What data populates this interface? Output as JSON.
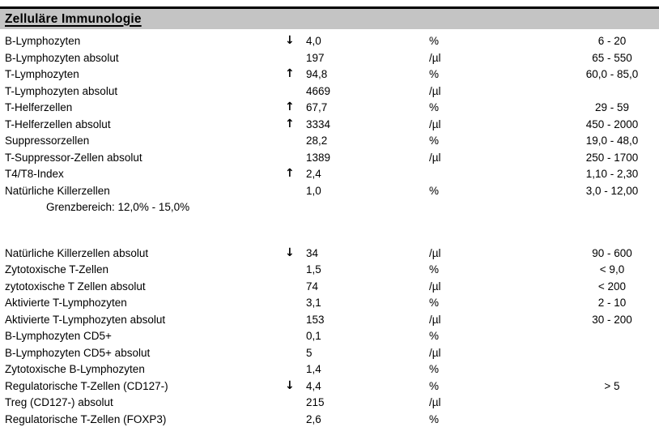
{
  "colors": {
    "background": "#ffffff",
    "band_gray": "#c4c4c4",
    "rule_black": "#000000",
    "text": "#000000"
  },
  "icons": {
    "up": "↑",
    "down": "↓"
  },
  "section": {
    "title": "Zelluläre Immunologie"
  },
  "table": {
    "rows": [
      {
        "label": "B-Lymphozyten",
        "arrow": "down",
        "value": "4,0",
        "unit": "%",
        "range": "6 - 20"
      },
      {
        "label": "B-Lymphozyten absolut",
        "arrow": "",
        "value": "197",
        "unit": "/µl",
        "range": "65 - 550"
      },
      {
        "label": "T-Lymphozyten",
        "arrow": "up",
        "value": "94,8",
        "unit": "%",
        "range": "60,0 - 85,0"
      },
      {
        "label": "T-Lymphozyten absolut",
        "arrow": "",
        "value": "4669",
        "unit": "/µl",
        "range": ""
      },
      {
        "label": "T-Helferzellen",
        "arrow": "up",
        "value": "67,7",
        "unit": "%",
        "range": "29 - 59"
      },
      {
        "label": "T-Helferzellen absolut",
        "arrow": "up",
        "value": "3334",
        "unit": "/µl",
        "range": "450 - 2000"
      },
      {
        "label": "Suppressorzellen",
        "arrow": "",
        "value": "28,2",
        "unit": "%",
        "range": "19,0 - 48,0"
      },
      {
        "label": "T-Suppressor-Zellen absolut",
        "arrow": "",
        "value": "1389",
        "unit": "/µl",
        "range": "250 - 1700"
      },
      {
        "label": "T4/T8-Index",
        "arrow": "up",
        "value": "2,4",
        "unit": "",
        "range": "1,10 - 2,30"
      },
      {
        "label": "Natürliche Killerzellen",
        "arrow": "",
        "value": "1,0",
        "unit": "%",
        "range": "3,0 - 12,00"
      },
      {
        "type": "note",
        "label": "Grenzbereich: 12,0% - 15,0%",
        "arrow": "",
        "value": "",
        "unit": "",
        "range": ""
      },
      {
        "type": "spacer"
      },
      {
        "label": "Natürliche Killerzellen absolut",
        "arrow": "down",
        "value": "34",
        "unit": "/µl",
        "range": "90 - 600"
      },
      {
        "label": "Zytotoxische T-Zellen",
        "arrow": "",
        "value": "1,5",
        "unit": "%",
        "range": "< 9,0"
      },
      {
        "label": "zytotoxische T Zellen absolut",
        "arrow": "",
        "value": "74",
        "unit": "/µl",
        "range": "< 200"
      },
      {
        "label": "Aktivierte T-Lymphozyten",
        "arrow": "",
        "value": "3,1",
        "unit": "%",
        "range": "2 - 10"
      },
      {
        "label": "Aktivierte T-Lymphozyten absolut",
        "arrow": "",
        "value": "153",
        "unit": "/µl",
        "range": "30 - 200"
      },
      {
        "label": "B-Lymphozyten CD5+",
        "arrow": "",
        "value": "0,1",
        "unit": "%",
        "range": ""
      },
      {
        "label": "B-Lymphozyten CD5+ absolut",
        "arrow": "",
        "value": "5",
        "unit": "/µl",
        "range": ""
      },
      {
        "label": "Zytotoxische B-Lymphozyten",
        "arrow": "",
        "value": "1,4",
        "unit": "%",
        "range": ""
      },
      {
        "label": "Regulatorische T-Zellen (CD127-)",
        "arrow": "down",
        "value": "4,4",
        "unit": "%",
        "range": "> 5"
      },
      {
        "label": "Treg (CD127-) absolut",
        "arrow": "",
        "value": "215",
        "unit": "/µl",
        "range": ""
      },
      {
        "label": "Regulatorische T-Zellen (FOXP3)",
        "arrow": "",
        "value": "2,6",
        "unit": "%",
        "range": ""
      }
    ]
  }
}
